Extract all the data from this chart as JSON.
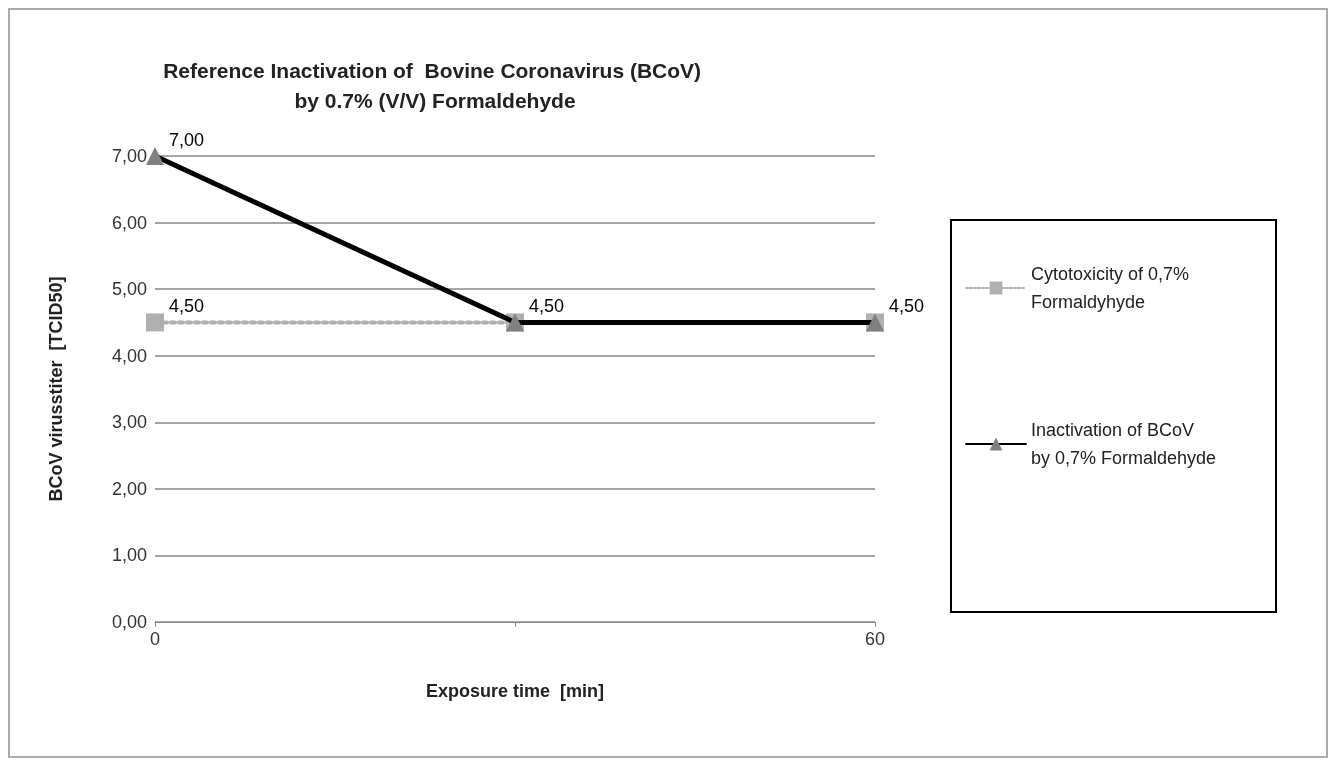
{
  "chart_data": {
    "type": "line",
    "title": "Reference Inactivation of  Bovine Coronavirus (BCoV) by 0.7% (V/V) Formaldehyde",
    "xlabel": "Exposure time  [min]",
    "ylabel": "BCoV virusstiter  [TCID50]",
    "categories": [
      "0",
      null,
      "60"
    ],
    "ylim": [
      0,
      7
    ],
    "yticks": [
      {
        "value": 0,
        "label": "0,00"
      },
      {
        "value": 1,
        "label": "1,00"
      },
      {
        "value": 2,
        "label": "2,00"
      },
      {
        "value": 3,
        "label": "3,00"
      },
      {
        "value": 4,
        "label": "4,00"
      },
      {
        "value": 5,
        "label": "5,00"
      },
      {
        "value": 6,
        "label": "6,00"
      },
      {
        "value": 7,
        "label": "7,00"
      }
    ],
    "grid": "y",
    "legend": "right",
    "series": [
      {
        "name": "Cytotoxicity of 0,7% Formaldyhyde",
        "color": "#b0b0b0",
        "values": [
          4.5,
          4.5,
          4.5
        ],
        "marker": "square",
        "line_style": "dotted",
        "value_labels": [
          "4,50",
          "4,50",
          "4,50"
        ]
      },
      {
        "name": "Inactivation of BCoV by 0,7% Formaldehyde",
        "color": "#000000",
        "values": [
          7,
          4.5,
          4.5
        ],
        "marker": "triangle",
        "line_style": "solid",
        "value_labels": [
          "7,00",
          null,
          null
        ]
      }
    ]
  }
}
